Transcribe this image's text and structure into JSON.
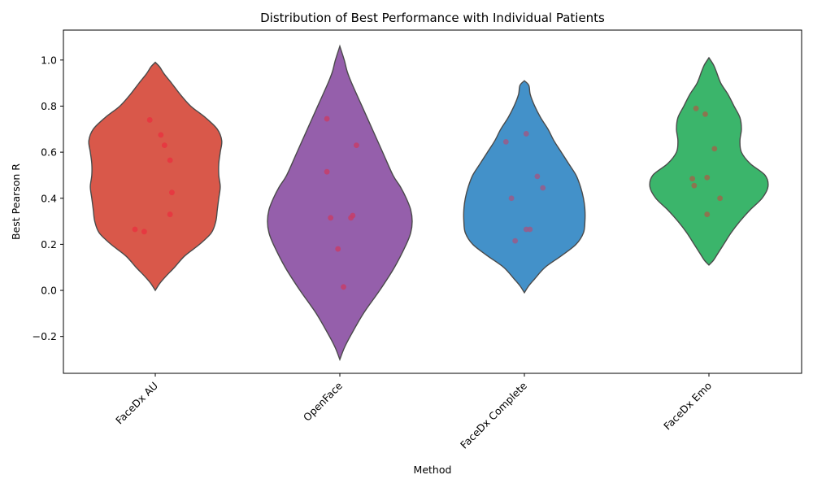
{
  "chart_data": {
    "type": "violin",
    "title": "Distribution of Best Performance with Individual Patients",
    "xlabel": "Method",
    "ylabel": "Best Pearson R",
    "ylim": [
      -0.36,
      1.13
    ],
    "yticks": [
      -0.2,
      0.0,
      0.2,
      0.4,
      0.6,
      0.8,
      1.0
    ],
    "ytick_labels": [
      "−0.2",
      "0.0",
      "0.2",
      "0.4",
      "0.6",
      "0.8",
      "1.0"
    ],
    "grid": false,
    "categories": [
      "FaceDx AU",
      "OpenFace",
      "FaceDx Complete",
      "FaceDx Emo"
    ],
    "colors": [
      "#d9584a",
      "#955fab",
      "#4391c9",
      "#3bb56b"
    ],
    "point_colors": [
      "#e8343f",
      "#c63e6a",
      "#9a5a88",
      "#9a6a4a"
    ],
    "series": [
      {
        "name": "FaceDx AU",
        "points": [
          {
            "jitter": -0.03,
            "y": 0.74
          },
          {
            "jitter": 0.03,
            "y": 0.675
          },
          {
            "jitter": 0.05,
            "y": 0.63
          },
          {
            "jitter": 0.08,
            "y": 0.565
          },
          {
            "jitter": 0.09,
            "y": 0.425
          },
          {
            "jitter": 0.08,
            "y": 0.33
          },
          {
            "jitter": -0.11,
            "y": 0.265
          },
          {
            "jitter": -0.06,
            "y": 0.255
          }
        ],
        "density": [
          [
            0.0,
            0.0
          ],
          [
            0.03,
            0.03
          ],
          [
            0.06,
            0.07
          ],
          [
            0.1,
            0.13
          ],
          [
            0.15,
            0.2
          ],
          [
            0.2,
            0.3
          ],
          [
            0.25,
            0.38
          ],
          [
            0.3,
            0.41
          ],
          [
            0.35,
            0.42
          ],
          [
            0.4,
            0.43
          ],
          [
            0.45,
            0.44
          ],
          [
            0.5,
            0.43
          ],
          [
            0.55,
            0.43
          ],
          [
            0.6,
            0.44
          ],
          [
            0.65,
            0.45
          ],
          [
            0.7,
            0.42
          ],
          [
            0.75,
            0.34
          ],
          [
            0.8,
            0.24
          ],
          [
            0.85,
            0.17
          ],
          [
            0.9,
            0.11
          ],
          [
            0.94,
            0.06
          ],
          [
            0.97,
            0.03
          ],
          [
            0.99,
            0.0
          ]
        ]
      },
      {
        "name": "OpenFace",
        "points": [
          {
            "jitter": -0.07,
            "y": 0.745
          },
          {
            "jitter": 0.09,
            "y": 0.63
          },
          {
            "jitter": -0.07,
            "y": 0.515
          },
          {
            "jitter": 0.07,
            "y": 0.325
          },
          {
            "jitter": -0.05,
            "y": 0.315
          },
          {
            "jitter": 0.06,
            "y": 0.315
          },
          {
            "jitter": -0.01,
            "y": 0.18
          },
          {
            "jitter": 0.02,
            "y": 0.015
          }
        ],
        "density": [
          [
            -0.3,
            0.0
          ],
          [
            -0.25,
            0.03
          ],
          [
            -0.2,
            0.07
          ],
          [
            -0.1,
            0.16
          ],
          [
            0.0,
            0.27
          ],
          [
            0.1,
            0.37
          ],
          [
            0.2,
            0.45
          ],
          [
            0.25,
            0.48
          ],
          [
            0.3,
            0.49
          ],
          [
            0.35,
            0.48
          ],
          [
            0.4,
            0.45
          ],
          [
            0.45,
            0.41
          ],
          [
            0.5,
            0.36
          ],
          [
            0.6,
            0.29
          ],
          [
            0.7,
            0.22
          ],
          [
            0.8,
            0.15
          ],
          [
            0.9,
            0.08
          ],
          [
            0.95,
            0.05
          ],
          [
            1.0,
            0.03
          ],
          [
            1.06,
            0.0
          ]
        ]
      },
      {
        "name": "FaceDx Complete",
        "points": [
          {
            "jitter": 0.01,
            "y": 0.68
          },
          {
            "jitter": -0.1,
            "y": 0.645
          },
          {
            "jitter": 0.07,
            "y": 0.495
          },
          {
            "jitter": 0.1,
            "y": 0.445
          },
          {
            "jitter": -0.07,
            "y": 0.4
          },
          {
            "jitter": 0.01,
            "y": 0.265
          },
          {
            "jitter": 0.03,
            "y": 0.265
          },
          {
            "jitter": -0.05,
            "y": 0.215
          }
        ],
        "density": [
          [
            -0.01,
            0.0
          ],
          [
            0.02,
            0.03
          ],
          [
            0.05,
            0.07
          ],
          [
            0.1,
            0.14
          ],
          [
            0.15,
            0.25
          ],
          [
            0.2,
            0.35
          ],
          [
            0.25,
            0.4
          ],
          [
            0.3,
            0.41
          ],
          [
            0.35,
            0.41
          ],
          [
            0.4,
            0.4
          ],
          [
            0.45,
            0.38
          ],
          [
            0.5,
            0.35
          ],
          [
            0.55,
            0.3
          ],
          [
            0.6,
            0.25
          ],
          [
            0.65,
            0.2
          ],
          [
            0.7,
            0.16
          ],
          [
            0.75,
            0.11
          ],
          [
            0.8,
            0.07
          ],
          [
            0.85,
            0.04
          ],
          [
            0.89,
            0.03
          ],
          [
            0.91,
            0.0
          ]
        ]
      },
      {
        "name": "FaceDx Emo",
        "points": [
          {
            "jitter": -0.07,
            "y": 0.79
          },
          {
            "jitter": -0.02,
            "y": 0.765
          },
          {
            "jitter": 0.03,
            "y": 0.615
          },
          {
            "jitter": -0.01,
            "y": 0.49
          },
          {
            "jitter": -0.09,
            "y": 0.485
          },
          {
            "jitter": -0.08,
            "y": 0.455
          },
          {
            "jitter": 0.06,
            "y": 0.4
          },
          {
            "jitter": -0.01,
            "y": 0.33
          }
        ],
        "density": [
          [
            0.11,
            0.0
          ],
          [
            0.13,
            0.03
          ],
          [
            0.16,
            0.06
          ],
          [
            0.2,
            0.1
          ],
          [
            0.25,
            0.15
          ],
          [
            0.3,
            0.21
          ],
          [
            0.35,
            0.28
          ],
          [
            0.4,
            0.36
          ],
          [
            0.45,
            0.4
          ],
          [
            0.5,
            0.38
          ],
          [
            0.55,
            0.28
          ],
          [
            0.6,
            0.22
          ],
          [
            0.65,
            0.21
          ],
          [
            0.7,
            0.22
          ],
          [
            0.75,
            0.21
          ],
          [
            0.8,
            0.17
          ],
          [
            0.85,
            0.13
          ],
          [
            0.9,
            0.08
          ],
          [
            0.95,
            0.05
          ],
          [
            0.98,
            0.03
          ],
          [
            1.01,
            0.0
          ]
        ]
      }
    ]
  }
}
